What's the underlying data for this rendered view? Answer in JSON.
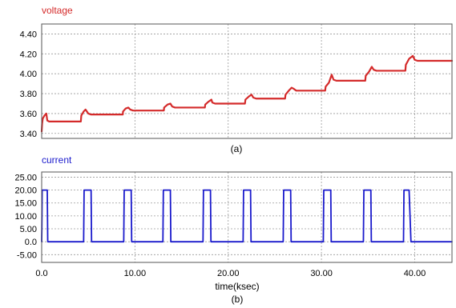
{
  "chart_data": [
    {
      "type": "line",
      "series": [
        {
          "name": "voltage",
          "color": "#d42a2a",
          "x": [
            0,
            0.05,
            0.12,
            0.3,
            0.5,
            0.6,
            0.8,
            4.2,
            4.25,
            4.5,
            4.7,
            5.0,
            5.3,
            8.7,
            8.72,
            9.0,
            9.3,
            9.5,
            9.8,
            13.1,
            13.13,
            13.5,
            13.8,
            14.0,
            14.3,
            17.5,
            17.54,
            17.9,
            18.2,
            18.3,
            18.6,
            21.8,
            21.85,
            22.2,
            22.5,
            22.7,
            23.0,
            26.1,
            26.15,
            26.5,
            26.8,
            27.0,
            27.3,
            30.4,
            30.45,
            30.8,
            31.1,
            31.3,
            31.6,
            34.7,
            34.75,
            35.1,
            35.4,
            35.6,
            35.9,
            39.0,
            39.05,
            39.4,
            39.8,
            40.0,
            40.3,
            44.0
          ],
          "y": [
            3.42,
            3.5,
            3.55,
            3.58,
            3.6,
            3.53,
            3.52,
            3.52,
            3.58,
            3.62,
            3.64,
            3.6,
            3.59,
            3.59,
            3.62,
            3.65,
            3.66,
            3.64,
            3.63,
            3.63,
            3.66,
            3.69,
            3.7,
            3.67,
            3.66,
            3.66,
            3.69,
            3.72,
            3.74,
            3.71,
            3.7,
            3.7,
            3.74,
            3.77,
            3.79,
            3.76,
            3.75,
            3.75,
            3.79,
            3.83,
            3.86,
            3.85,
            3.83,
            3.83,
            3.87,
            3.91,
            3.99,
            3.94,
            3.93,
            3.93,
            3.98,
            4.02,
            4.07,
            4.04,
            4.03,
            4.03,
            4.09,
            4.15,
            4.18,
            4.14,
            4.13,
            4.13
          ]
        }
      ],
      "ylim": [
        3.35,
        4.5
      ],
      "xlim": [
        0,
        44
      ],
      "yticks": [
        "3.40",
        "3.60",
        "3.80",
        "4.00",
        "4.20",
        "4.40"
      ],
      "ytick_values": [
        3.4,
        3.6,
        3.8,
        4.0,
        4.2,
        4.4
      ],
      "xtick_values": [
        0,
        10,
        20,
        30,
        40
      ],
      "caption": "(a)",
      "grid": true
    },
    {
      "type": "line",
      "series": [
        {
          "name": "current",
          "color": "#1a1acc",
          "x": [
            0,
            0.02,
            0.05,
            0.6,
            0.65,
            4.5,
            4.55,
            5.3,
            5.35,
            8.8,
            8.85,
            9.6,
            9.65,
            13.0,
            13.05,
            13.8,
            13.85,
            17.3,
            17.35,
            18.1,
            18.15,
            21.6,
            21.65,
            22.4,
            22.45,
            25.9,
            25.95,
            26.7,
            26.75,
            30.2,
            30.25,
            31.0,
            31.05,
            34.5,
            34.55,
            35.3,
            35.35,
            38.8,
            38.85,
            39.4,
            39.5,
            39.6,
            44.0
          ],
          "y": [
            0,
            5,
            20,
            20,
            0,
            0,
            20,
            20,
            0,
            0,
            20,
            20,
            0,
            0,
            20,
            20,
            0,
            0,
            20,
            20,
            0,
            0,
            20,
            20,
            0,
            0,
            20,
            20,
            0,
            0,
            20,
            20,
            0,
            0,
            20,
            20,
            0,
            0,
            20,
            20,
            10,
            0,
            0
          ]
        }
      ],
      "ylim": [
        -8,
        27
      ],
      "xlim": [
        0,
        44
      ],
      "yticks": [
        "-5.00",
        "0.0",
        "5.00",
        "10.00",
        "15.00",
        "20.00",
        "25.00"
      ],
      "ytick_values": [
        -5,
        0,
        5,
        10,
        15,
        20,
        25
      ],
      "xticks": [
        "0.0",
        "10.00",
        "20.00",
        "30.00",
        "40.00"
      ],
      "xtick_values": [
        0,
        10,
        20,
        30,
        40
      ],
      "xlabel": "time(ksec)",
      "caption": "(b)",
      "grid": true
    }
  ]
}
